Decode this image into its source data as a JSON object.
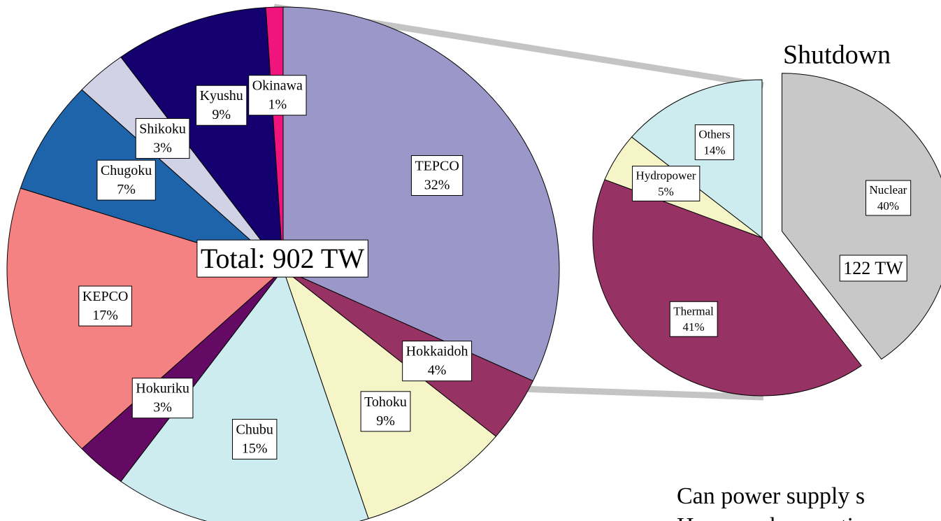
{
  "chart_data": [
    {
      "type": "pie",
      "annotation": "Total: 902 TW",
      "categories": [
        "TEPCO",
        "Hokkaidoh",
        "Tohoku",
        "Chubu",
        "Hokuriku",
        "KEPCO",
        "Chugoku",
        "Shikoku",
        "Kyushu",
        "Okinawa"
      ],
      "values": [
        32,
        4,
        9,
        15,
        3,
        17,
        7,
        3,
        9,
        1
      ],
      "value_labels": [
        "32%",
        "4%",
        "9%",
        "15%",
        "3%",
        "17%",
        "7%",
        "3%",
        "9%",
        "1%"
      ],
      "colors": [
        "#9b97c8",
        "#963264",
        "#f5f5c8",
        "#cdecf0",
        "#640a64",
        "#f58282",
        "#1e64aa",
        "#d2d2e6",
        "#14006e",
        "#f0147d"
      ]
    },
    {
      "type": "pie",
      "title": "Shutdown",
      "annotation": "122 TW",
      "categories": [
        "Nuclear",
        "Thermal",
        "Hydropower",
        "Others"
      ],
      "values": [
        40,
        41,
        5,
        14
      ],
      "value_labels": [
        "40%",
        "41%",
        "5%",
        "14%"
      ],
      "colors": [
        "#c8c8c8",
        "#963264",
        "#f5f5c8",
        "#cdecf0"
      ]
    }
  ],
  "text": [
    "Can power supply s",
    "How much operatio"
  ]
}
